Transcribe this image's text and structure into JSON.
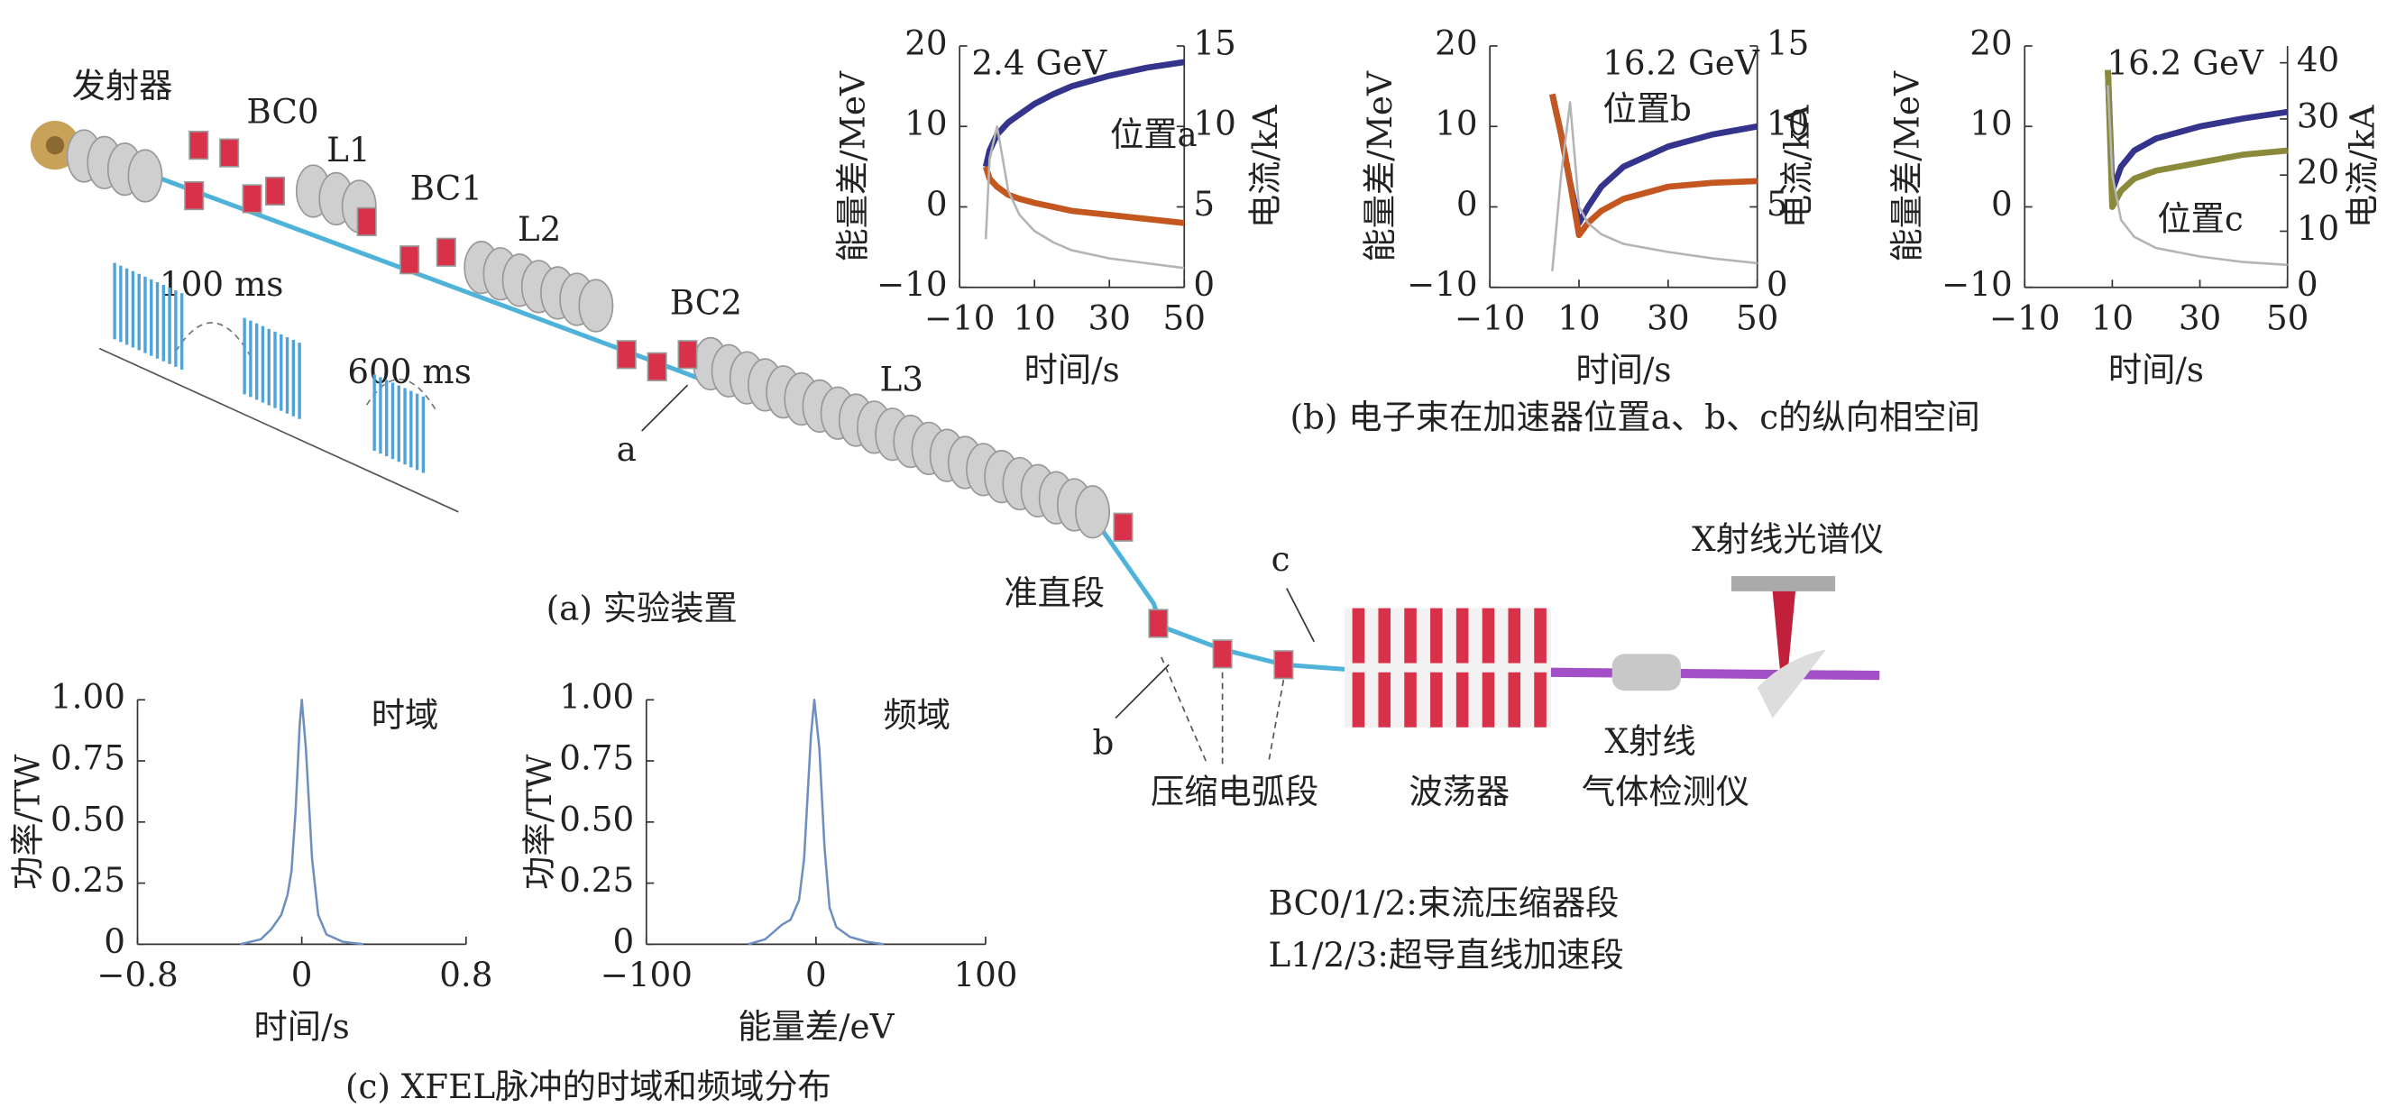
{
  "diagram": {
    "source": "发射器",
    "bc0": "BC0",
    "l1": "L1",
    "bc1": "BC1",
    "l2": "L2",
    "bc2": "BC2",
    "l3": "L3",
    "point_a": "a",
    "point_b": "b",
    "point_c": "c",
    "gap1": "100 ms",
    "gap2": "600 ms",
    "caption_a": "(a) 实验装置",
    "collimation": "准直段",
    "arc": "压缩电弧段",
    "undulator": "波荡器",
    "spectrometer": "X射线光谱仪",
    "detector_1": "X射线",
    "detector_2": "气体检测仪",
    "note_1": "BC0/1/2:束流压缩器段",
    "note_2": "L1/2/3:超导直线加速段",
    "caption_b": "(b) 电子束在加速器位置a、b、c的纵向相空间",
    "caption_c": "(c) XFEL脉冲的时域和频域分布"
  },
  "chart_data": [
    {
      "type": "line",
      "annotations": [
        "2.4 GeV",
        "位置a"
      ],
      "xlabel": "时间/s",
      "ylabel": "能量差/MeV",
      "y2label": "电流/kA",
      "x": [
        -3,
        -2,
        0,
        3,
        6,
        10,
        15,
        20,
        30,
        40,
        50
      ],
      "xlim": [
        -10,
        50
      ],
      "xticks": [
        {
          "value": -10,
          "label": "−10"
        },
        10,
        30,
        50
      ],
      "ylim": [
        -10,
        20
      ],
      "yticks": [
        {
          "value": -10,
          "label": "−10"
        },
        0,
        10,
        20
      ],
      "y2lim": [
        0,
        15
      ],
      "y2ticks": [
        0,
        5,
        10,
        15
      ],
      "series": [
        {
          "color": "#35348c",
          "values": [
            5,
            7,
            9,
            10.5,
            11.5,
            12.8,
            14,
            15,
            16.3,
            17.3,
            18
          ]
        },
        {
          "color": "#c4571f",
          "values": [
            5,
            3.5,
            2.5,
            1.5,
            1,
            0.5,
            0,
            -0.5,
            -1,
            -1.5,
            -2
          ]
        },
        {
          "color": "#b4b4b4",
          "axis": "y2",
          "values": [
            3,
            8,
            10,
            6,
            4.5,
            3.5,
            2.8,
            2.3,
            1.8,
            1.5,
            1.2
          ]
        }
      ]
    },
    {
      "type": "line",
      "annotations": [
        "16.2 GeV",
        "位置b"
      ],
      "xlabel": "时间/s",
      "ylabel": "能量差/MeV",
      "y2label": "电流/kA",
      "x": [
        4,
        6,
        8,
        10,
        12,
        15,
        20,
        30,
        40,
        50
      ],
      "xlim": [
        -10,
        50
      ],
      "xticks": [
        {
          "value": -10,
          "label": "−10"
        },
        10,
        30,
        50
      ],
      "ylim": [
        -10,
        20
      ],
      "yticks": [
        {
          "value": -10,
          "label": "−10"
        },
        0,
        10,
        20
      ],
      "y2lim": [
        0,
        15
      ],
      "y2ticks": [
        0,
        5,
        10,
        15
      ],
      "series": [
        {
          "color": "#35348c",
          "values": [
            14,
            9,
            3,
            -2,
            0,
            2.5,
            5,
            7.5,
            9,
            10
          ]
        },
        {
          "color": "#c4571f",
          "values": [
            14,
            9,
            3,
            -3.5,
            -2,
            -0.5,
            1,
            2.5,
            3,
            3.2
          ]
        },
        {
          "color": "#b4b4b4",
          "axis": "y2",
          "values": [
            1,
            7,
            11.5,
            5,
            4,
            3.3,
            2.7,
            2.2,
            1.8,
            1.5
          ]
        }
      ]
    },
    {
      "type": "line",
      "annotations": [
        "16.2 GeV",
        "位置c"
      ],
      "xlabel": "时间/s",
      "ylabel": "能量差/MeV",
      "y2label": "电流/kA",
      "x": [
        9,
        10,
        12,
        15,
        20,
        30,
        40,
        50
      ],
      "xlim": [
        -10,
        50
      ],
      "xticks": [
        {
          "value": -10,
          "label": "−10"
        },
        10,
        30,
        50
      ],
      "ylim": [
        -10,
        20
      ],
      "yticks": [
        {
          "value": -10,
          "label": "−10"
        },
        0,
        10,
        20
      ],
      "y2lim": [
        0,
        43
      ],
      "y2ticks": [
        0,
        10,
        20,
        30,
        40
      ],
      "series": [
        {
          "color": "#35348c",
          "values": [
            17,
            2,
            5,
            7,
            8.5,
            10,
            11,
            11.8
          ]
        },
        {
          "color": "#8a8a3a",
          "values": [
            17,
            0,
            2,
            3.5,
            4.5,
            5.5,
            6.5,
            7
          ]
        },
        {
          "color": "#b4b4b4",
          "axis": "y2",
          "values": [
            36,
            20,
            12,
            9,
            7,
            5.5,
            4.5,
            4
          ]
        }
      ]
    },
    {
      "type": "line",
      "annotations": [
        "时域"
      ],
      "xlabel": "时间/s",
      "ylabel": "功率/TW",
      "x": [
        -0.3,
        -0.2,
        -0.15,
        -0.1,
        -0.07,
        -0.05,
        -0.03,
        -0.01,
        0,
        0.02,
        0.05,
        0.08,
        0.12,
        0.2,
        0.3
      ],
      "xlim": [
        -0.8,
        0.8
      ],
      "xticks": [
        {
          "value": -0.8,
          "label": "−0.8"
        },
        0,
        0.8
      ],
      "ylim": [
        0,
        1
      ],
      "yticks": [
        0,
        0.25,
        {
          "value": 0.5,
          "label": "0.50"
        },
        0.75,
        {
          "value": 1,
          "label": "1.00"
        }
      ],
      "series": [
        {
          "color": "#6f8fc0",
          "values": [
            0,
            0.02,
            0.06,
            0.12,
            0.2,
            0.3,
            0.55,
            0.9,
            1,
            0.8,
            0.35,
            0.12,
            0.04,
            0.01,
            0
          ]
        }
      ]
    },
    {
      "type": "line",
      "annotations": [
        "频域"
      ],
      "xlabel": "能量差/eV",
      "ylabel": "功率/TW",
      "x": [
        -40,
        -30,
        -20,
        -15,
        -10,
        -7,
        -5,
        -3,
        -1,
        2,
        5,
        8,
        12,
        20,
        30,
        40
      ],
      "xlim": [
        -100,
        100
      ],
      "xticks": [
        {
          "value": -100,
          "label": "−100"
        },
        0,
        100
      ],
      "ylim": [
        0,
        1
      ],
      "yticks": [
        0,
        0.25,
        {
          "value": 0.5,
          "label": "0.50"
        },
        0.75,
        {
          "value": 1,
          "label": "1.00"
        }
      ],
      "series": [
        {
          "color": "#6f8fc0",
          "values": [
            0,
            0.02,
            0.08,
            0.1,
            0.18,
            0.35,
            0.6,
            0.85,
            1,
            0.8,
            0.4,
            0.15,
            0.07,
            0.03,
            0.01,
            0
          ]
        }
      ]
    }
  ]
}
